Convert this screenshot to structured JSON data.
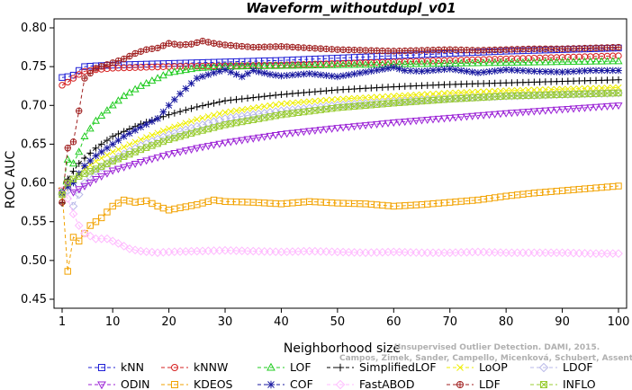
{
  "chart_data": {
    "type": "line",
    "title": "Waveform_withoutdupl_v01",
    "xlabel": "Neighborhood size",
    "ylabel": "ROC AUC",
    "xlim": [
      1,
      100
    ],
    "ylim": [
      0.45,
      0.8
    ],
    "xticks": [
      1,
      10,
      20,
      30,
      40,
      50,
      60,
      70,
      80,
      90,
      100
    ],
    "yticks": [
      0.45,
      0.5,
      0.55,
      0.6,
      0.65,
      0.7,
      0.75,
      0.8
    ],
    "ytick_labels": [
      "0.45",
      "0.50",
      "0.55",
      "0.60",
      "0.65",
      "0.70",
      "0.75",
      "0.80"
    ],
    "grid": false,
    "legend_position": "bottom",
    "credit_lines": [
      "Unsupervised Outlier Detection. DAMI, 2015.",
      "Campos, Zimek, Sander, Campello, Micenková, Schubert, Assent, Houle"
    ],
    "series": [
      {
        "name": "kNN",
        "color": "#1f1fd6",
        "marker": "square",
        "dash": "4,3",
        "points": [
          [
            1,
            0.736
          ],
          [
            2,
            0.737
          ],
          [
            3,
            0.739
          ],
          [
            4,
            0.745
          ],
          [
            5,
            0.75
          ],
          [
            7,
            0.751
          ],
          [
            10,
            0.752
          ],
          [
            15,
            0.753
          ],
          [
            20,
            0.754
          ],
          [
            30,
            0.756
          ],
          [
            40,
            0.758
          ],
          [
            50,
            0.761
          ],
          [
            60,
            0.764
          ],
          [
            70,
            0.767
          ],
          [
            80,
            0.77
          ],
          [
            90,
            0.772
          ],
          [
            100,
            0.774
          ]
        ]
      },
      {
        "name": "kNNW",
        "color": "#d62020",
        "marker": "circle",
        "dash": "4,3",
        "points": [
          [
            1,
            0.726
          ],
          [
            2,
            0.73
          ],
          [
            3,
            0.735
          ],
          [
            4,
            0.74
          ],
          [
            5,
            0.744
          ],
          [
            7,
            0.746
          ],
          [
            10,
            0.748
          ],
          [
            15,
            0.749
          ],
          [
            20,
            0.75
          ],
          [
            30,
            0.751
          ],
          [
            40,
            0.752
          ],
          [
            50,
            0.754
          ],
          [
            60,
            0.756
          ],
          [
            70,
            0.758
          ],
          [
            80,
            0.76
          ],
          [
            90,
            0.762
          ],
          [
            100,
            0.764
          ]
        ]
      },
      {
        "name": "LOF",
        "color": "#22cc22",
        "marker": "triangle-up",
        "dash": "4,3",
        "points": [
          [
            1,
            0.59
          ],
          [
            2,
            0.63
          ],
          [
            3,
            0.625
          ],
          [
            4,
            0.64
          ],
          [
            5,
            0.66
          ],
          [
            7,
            0.68
          ],
          [
            10,
            0.7
          ],
          [
            12,
            0.712
          ],
          [
            15,
            0.725
          ],
          [
            18,
            0.735
          ],
          [
            20,
            0.742
          ],
          [
            25,
            0.748
          ],
          [
            30,
            0.75
          ],
          [
            40,
            0.751
          ],
          [
            50,
            0.752
          ],
          [
            60,
            0.753
          ],
          [
            70,
            0.754
          ],
          [
            80,
            0.755
          ],
          [
            90,
            0.756
          ],
          [
            100,
            0.757
          ]
        ]
      },
      {
        "name": "SimplifiedLOF",
        "color": "#000000",
        "marker": "plus",
        "dash": "4,3",
        "points": [
          [
            1,
            0.574
          ],
          [
            2,
            0.605
          ],
          [
            3,
            0.615
          ],
          [
            4,
            0.625
          ],
          [
            5,
            0.632
          ],
          [
            7,
            0.645
          ],
          [
            10,
            0.66
          ],
          [
            15,
            0.676
          ],
          [
            20,
            0.688
          ],
          [
            25,
            0.698
          ],
          [
            30,
            0.706
          ],
          [
            40,
            0.714
          ],
          [
            50,
            0.72
          ],
          [
            60,
            0.724
          ],
          [
            70,
            0.727
          ],
          [
            80,
            0.729
          ],
          [
            90,
            0.731
          ],
          [
            100,
            0.733
          ]
        ]
      },
      {
        "name": "LoOP",
        "color": "#eeee00",
        "marker": "x",
        "dash": "4,3",
        "points": [
          [
            1,
            0.58
          ],
          [
            2,
            0.595
          ],
          [
            3,
            0.605
          ],
          [
            5,
            0.618
          ],
          [
            7,
            0.628
          ],
          [
            10,
            0.64
          ],
          [
            15,
            0.656
          ],
          [
            20,
            0.67
          ],
          [
            25,
            0.682
          ],
          [
            30,
            0.691
          ],
          [
            40,
            0.702
          ],
          [
            50,
            0.708
          ],
          [
            60,
            0.712
          ],
          [
            70,
            0.716
          ],
          [
            80,
            0.719
          ],
          [
            90,
            0.721
          ],
          [
            100,
            0.723
          ]
        ]
      },
      {
        "name": "LDOF",
        "color": "#b8b8e8",
        "marker": "diamond",
        "dash": "4,3",
        "points": [
          [
            1,
            0.585
          ],
          [
            2,
            0.59
          ],
          [
            3,
            0.57
          ],
          [
            4,
            0.585
          ],
          [
            5,
            0.6
          ],
          [
            7,
            0.615
          ],
          [
            10,
            0.63
          ],
          [
            15,
            0.648
          ],
          [
            20,
            0.662
          ],
          [
            25,
            0.673
          ],
          [
            30,
            0.683
          ],
          [
            40,
            0.693
          ],
          [
            50,
            0.7
          ],
          [
            60,
            0.705
          ],
          [
            70,
            0.709
          ],
          [
            80,
            0.712
          ],
          [
            90,
            0.714
          ],
          [
            100,
            0.716
          ]
        ]
      },
      {
        "name": "ODIN",
        "color": "#9b22d6",
        "marker": "triangle-down",
        "dash": "4,3",
        "points": [
          [
            1,
            0.59
          ],
          [
            2,
            0.6
          ],
          [
            3,
            0.588
          ],
          [
            5,
            0.596
          ],
          [
            7,
            0.605
          ],
          [
            10,
            0.616
          ],
          [
            15,
            0.627
          ],
          [
            20,
            0.637
          ],
          [
            25,
            0.645
          ],
          [
            30,
            0.652
          ],
          [
            40,
            0.663
          ],
          [
            50,
            0.671
          ],
          [
            60,
            0.678
          ],
          [
            70,
            0.684
          ],
          [
            80,
            0.69
          ],
          [
            90,
            0.695
          ],
          [
            100,
            0.7
          ]
        ]
      },
      {
        "name": "KDEOS",
        "color": "#f2a200",
        "marker": "square",
        "dash": "4,3",
        "points": [
          [
            1,
            0.59
          ],
          [
            2,
            0.486
          ],
          [
            3,
            0.53
          ],
          [
            4,
            0.525
          ],
          [
            5,
            0.535
          ],
          [
            6,
            0.545
          ],
          [
            7,
            0.55
          ],
          [
            8,
            0.555
          ],
          [
            10,
            0.57
          ],
          [
            12,
            0.578
          ],
          [
            14,
            0.575
          ],
          [
            16,
            0.577
          ],
          [
            18,
            0.57
          ],
          [
            20,
            0.565
          ],
          [
            22,
            0.568
          ],
          [
            25,
            0.572
          ],
          [
            28,
            0.578
          ],
          [
            30,
            0.576
          ],
          [
            35,
            0.575
          ],
          [
            40,
            0.573
          ],
          [
            45,
            0.576
          ],
          [
            50,
            0.574
          ],
          [
            55,
            0.573
          ],
          [
            60,
            0.57
          ],
          [
            65,
            0.572
          ],
          [
            70,
            0.575
          ],
          [
            75,
            0.578
          ],
          [
            80,
            0.583
          ],
          [
            85,
            0.587
          ],
          [
            90,
            0.59
          ],
          [
            95,
            0.593
          ],
          [
            100,
            0.596
          ]
        ]
      },
      {
        "name": "COF",
        "color": "#1a1aa0",
        "marker": "asterisk",
        "dash": "4,3",
        "points": [
          [
            1,
            0.587
          ],
          [
            2,
            0.595
          ],
          [
            3,
            0.6
          ],
          [
            4,
            0.612
          ],
          [
            5,
            0.622
          ],
          [
            7,
            0.635
          ],
          [
            10,
            0.65
          ],
          [
            12,
            0.66
          ],
          [
            15,
            0.672
          ],
          [
            18,
            0.683
          ],
          [
            20,
            0.7
          ],
          [
            22,
            0.715
          ],
          [
            25,
            0.735
          ],
          [
            28,
            0.742
          ],
          [
            30,
            0.746
          ],
          [
            33,
            0.737
          ],
          [
            35,
            0.745
          ],
          [
            38,
            0.74
          ],
          [
            40,
            0.738
          ],
          [
            45,
            0.741
          ],
          [
            50,
            0.737
          ],
          [
            55,
            0.743
          ],
          [
            60,
            0.749
          ],
          [
            62,
            0.745
          ],
          [
            65,
            0.744
          ],
          [
            70,
            0.747
          ],
          [
            75,
            0.742
          ],
          [
            80,
            0.746
          ],
          [
            85,
            0.744
          ],
          [
            90,
            0.743
          ],
          [
            95,
            0.745
          ],
          [
            100,
            0.745
          ]
        ]
      },
      {
        "name": "FastABOD",
        "color": "#ffbbff",
        "marker": "diamond",
        "dash": "4,3",
        "points": [
          [
            1,
            0.59
          ],
          [
            2,
            0.58
          ],
          [
            3,
            0.56
          ],
          [
            4,
            0.545
          ],
          [
            5,
            0.535
          ],
          [
            7,
            0.528
          ],
          [
            9,
            0.528
          ],
          [
            11,
            0.522
          ],
          [
            13,
            0.515
          ],
          [
            15,
            0.512
          ],
          [
            18,
            0.51
          ],
          [
            20,
            0.511
          ],
          [
            25,
            0.512
          ],
          [
            30,
            0.513
          ],
          [
            35,
            0.512
          ],
          [
            40,
            0.511
          ],
          [
            45,
            0.512
          ],
          [
            50,
            0.511
          ],
          [
            55,
            0.51
          ],
          [
            60,
            0.511
          ],
          [
            65,
            0.51
          ],
          [
            70,
            0.51
          ],
          [
            75,
            0.511
          ],
          [
            80,
            0.51
          ],
          [
            85,
            0.51
          ],
          [
            90,
            0.51
          ],
          [
            95,
            0.509
          ],
          [
            100,
            0.509
          ]
        ]
      },
      {
        "name": "LDF",
        "color": "#a02020",
        "marker": "circle-plus",
        "dash": "4,3",
        "points": [
          [
            1,
            0.575
          ],
          [
            2,
            0.645
          ],
          [
            3,
            0.653
          ],
          [
            4,
            0.693
          ],
          [
            5,
            0.735
          ],
          [
            7,
            0.748
          ],
          [
            10,
            0.755
          ],
          [
            12,
            0.76
          ],
          [
            14,
            0.767
          ],
          [
            16,
            0.772
          ],
          [
            18,
            0.774
          ],
          [
            20,
            0.78
          ],
          [
            22,
            0.778
          ],
          [
            24,
            0.779
          ],
          [
            26,
            0.783
          ],
          [
            28,
            0.78
          ],
          [
            30,
            0.778
          ],
          [
            35,
            0.775
          ],
          [
            40,
            0.776
          ],
          [
            45,
            0.774
          ],
          [
            50,
            0.772
          ],
          [
            55,
            0.771
          ],
          [
            60,
            0.77
          ],
          [
            65,
            0.771
          ],
          [
            70,
            0.772
          ],
          [
            75,
            0.771
          ],
          [
            80,
            0.772
          ],
          [
            85,
            0.773
          ],
          [
            90,
            0.773
          ],
          [
            95,
            0.774
          ],
          [
            100,
            0.775
          ]
        ]
      },
      {
        "name": "INFLO",
        "color": "#99cc33",
        "marker": "square-x",
        "dash": "4,3",
        "points": [
          [
            1,
            0.585
          ],
          [
            2,
            0.6
          ],
          [
            3,
            0.605
          ],
          [
            5,
            0.612
          ],
          [
            7,
            0.618
          ],
          [
            10,
            0.628
          ],
          [
            15,
            0.643
          ],
          [
            20,
            0.656
          ],
          [
            25,
            0.666
          ],
          [
            30,
            0.675
          ],
          [
            40,
            0.688
          ],
          [
            50,
            0.697
          ],
          [
            60,
            0.703
          ],
          [
            70,
            0.708
          ],
          [
            80,
            0.712
          ],
          [
            90,
            0.714
          ],
          [
            100,
            0.716
          ]
        ]
      }
    ]
  }
}
